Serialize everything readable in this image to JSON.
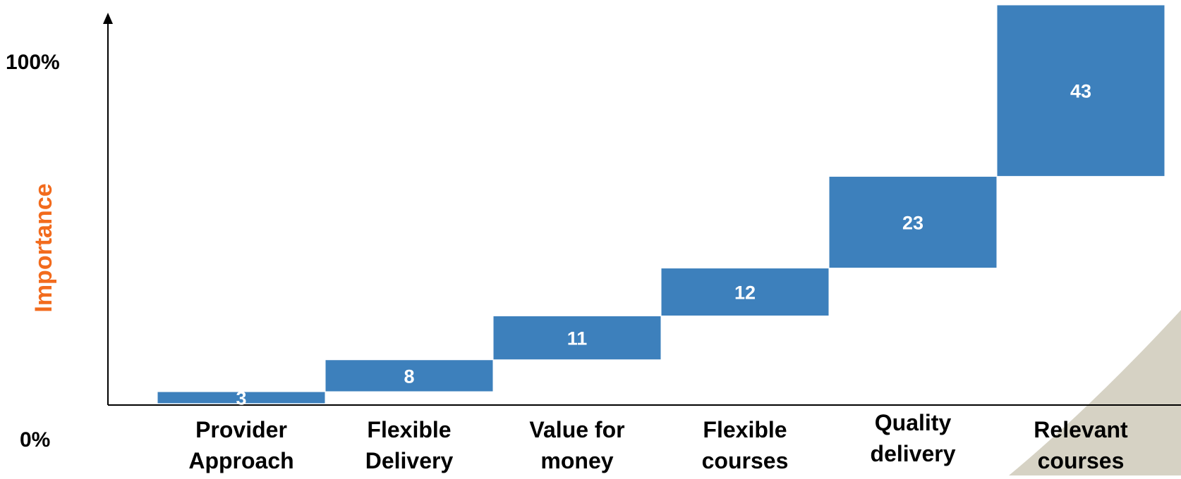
{
  "chart_data": {
    "type": "bar",
    "subtype": "waterfall",
    "title": "",
    "xlabel": "",
    "ylabel": "Importance",
    "y_tick_labels": [
      "0%",
      "100%"
    ],
    "ylim": [
      0,
      100
    ],
    "categories": [
      [
        "Provider",
        "Approach"
      ],
      [
        "Flexible",
        "Delivery"
      ],
      [
        "Value for",
        "money"
      ],
      [
        "Flexible",
        "courses"
      ],
      [
        "Quality",
        "delivery"
      ],
      [
        "Relevant",
        "courses"
      ]
    ],
    "values": [
      3,
      8,
      11,
      12,
      23,
      43
    ],
    "bar_color": "#3D80BC",
    "label_color": "#FFFFFF",
    "ylabel_color": "#F26B1D",
    "grid": false,
    "legend": "none"
  }
}
